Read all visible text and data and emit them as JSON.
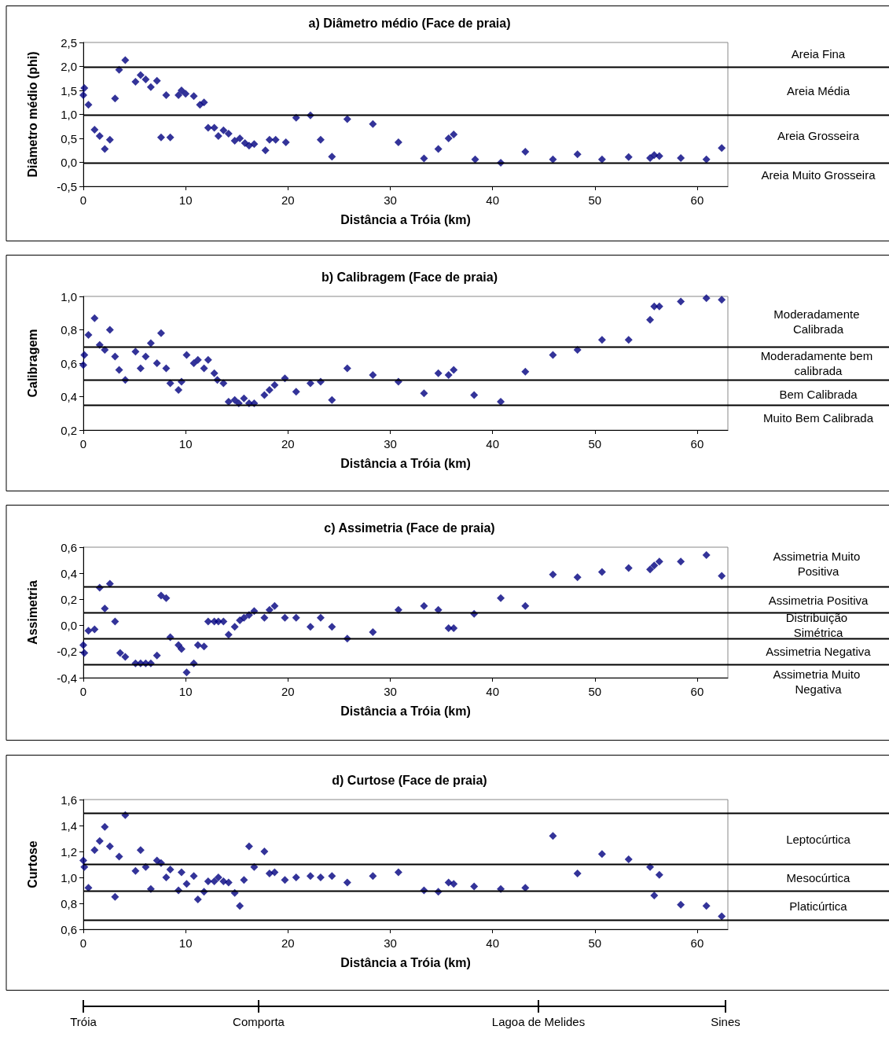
{
  "chart_data": [
    {
      "type": "scatter",
      "title": "a) Diâmetro médio (Face de praia)",
      "xlabel": "Distância a Tróia (km)",
      "ylabel": "Diâmetro médio (phi)",
      "x": [
        0,
        0.1,
        0.5,
        1.1,
        1.6,
        2.1,
        2.6,
        3.1,
        3.5,
        4.1,
        5.1,
        5.6,
        6.1,
        6.6,
        7.2,
        7.6,
        8.1,
        8.5,
        9.3,
        9.6,
        10.0,
        10.8,
        11.4,
        11.8,
        12.2,
        12.8,
        13.2,
        13.7,
        14.2,
        14.8,
        15.3,
        15.8,
        16.2,
        16.7,
        17.8,
        18.2,
        18.8,
        19.8,
        20.8,
        22.2,
        23.2,
        24.3,
        25.8,
        28.3,
        30.8,
        33.3,
        34.7,
        35.7,
        36.2,
        38.3,
        40.8,
        43.2,
        45.9,
        48.3,
        50.7,
        53.3,
        55.4,
        55.8,
        56.3,
        58.4,
        60.9,
        62.4
      ],
      "values": [
        1.4,
        1.55,
        1.2,
        0.68,
        0.55,
        0.28,
        0.47,
        1.33,
        1.93,
        2.13,
        1.68,
        1.82,
        1.73,
        1.57,
        1.7,
        0.52,
        1.4,
        0.52,
        1.4,
        1.5,
        1.43,
        1.38,
        1.2,
        1.25,
        0.72,
        0.72,
        0.55,
        0.67,
        0.6,
        0.45,
        0.5,
        0.4,
        0.35,
        0.38,
        0.25,
        0.47,
        0.47,
        0.42,
        0.93,
        0.98,
        0.47,
        0.12,
        0.9,
        0.8,
        0.42,
        0.08,
        0.28,
        0.5,
        0.58,
        0.06,
        -0.01,
        0.22,
        0.06,
        0.17,
        0.06,
        0.11,
        0.09,
        0.15,
        0.13,
        0.09,
        0.06,
        0.3
      ],
      "color": "#000080",
      "marker": "diamond",
      "grid": false,
      "xlim": [
        0,
        63
      ],
      "xticks": [
        0,
        10,
        20,
        30,
        40,
        50,
        60
      ],
      "ylim": [
        -0.5,
        2.5
      ],
      "yticks": [
        {
          "value": -0.5,
          "label": "-0,5"
        },
        {
          "value": 0,
          "label": "0,0"
        },
        {
          "value": 0.5,
          "label": "0,5"
        },
        {
          "value": 1,
          "label": "1,0"
        },
        {
          "value": 1.5,
          "label": "1,5"
        },
        {
          "value": 2,
          "label": "2,0"
        },
        {
          "value": 2.5,
          "label": "2,5"
        }
      ],
      "ref_lines": [
        {
          "axis": "y",
          "value": 2
        },
        {
          "axis": "y",
          "value": 1
        },
        {
          "axis": "y",
          "value": 0
        }
      ],
      "annotations": [
        "Areia Fina",
        "Areia Média",
        "Areia Grosseira",
        "Areia Muito Grosseira"
      ]
    },
    {
      "type": "scatter",
      "title": "b) Calibragem (Face de praia)",
      "xlabel": "Distância a Tróia (km)",
      "ylabel": "Calibragem",
      "x": [
        0,
        0.1,
        0.5,
        1.1,
        1.6,
        2.1,
        2.6,
        3.1,
        3.5,
        4.1,
        5.1,
        5.6,
        6.1,
        6.6,
        7.2,
        7.6,
        8.1,
        8.5,
        9.3,
        9.6,
        10.1,
        10.8,
        11.2,
        11.8,
        12.2,
        12.8,
        13.1,
        13.7,
        14.2,
        14.8,
        15.2,
        15.7,
        16.2,
        16.7,
        17.7,
        18.2,
        18.7,
        19.7,
        20.8,
        22.2,
        23.2,
        24.3,
        25.8,
        28.3,
        30.8,
        33.3,
        34.7,
        35.7,
        36.2,
        38.2,
        40.8,
        43.2,
        45.9,
        48.3,
        50.7,
        53.3,
        55.4,
        55.8,
        56.3,
        58.4,
        60.9,
        62.4
      ],
      "values": [
        0.59,
        0.65,
        0.77,
        0.87,
        0.71,
        0.68,
        0.8,
        0.64,
        0.56,
        0.5,
        0.67,
        0.57,
        0.64,
        0.72,
        0.6,
        0.78,
        0.57,
        0.48,
        0.44,
        0.49,
        0.65,
        0.6,
        0.62,
        0.57,
        0.62,
        0.54,
        0.5,
        0.48,
        0.37,
        0.38,
        0.36,
        0.39,
        0.36,
        0.36,
        0.41,
        0.44,
        0.47,
        0.51,
        0.43,
        0.48,
        0.49,
        0.38,
        0.57,
        0.53,
        0.49,
        0.42,
        0.54,
        0.53,
        0.56,
        0.41,
        0.37,
        0.55,
        0.65,
        0.68,
        0.74,
        0.74,
        0.86,
        0.94,
        0.94,
        0.97,
        0.99,
        0.98
      ],
      "color": "#000080",
      "marker": "diamond",
      "grid": false,
      "xlim": [
        0,
        63
      ],
      "xticks": [
        0,
        10,
        20,
        30,
        40,
        50,
        60
      ],
      "ylim": [
        0.2,
        1.0
      ],
      "yticks": [
        {
          "value": 0.2,
          "label": "0,2"
        },
        {
          "value": 0.4,
          "label": "0,4"
        },
        {
          "value": 0.6,
          "label": "0,6"
        },
        {
          "value": 0.8,
          "label": "0,8"
        },
        {
          "value": 1.0,
          "label": "1,0"
        }
      ],
      "ref_lines": [
        {
          "axis": "y",
          "value": 0.7
        },
        {
          "axis": "y",
          "value": 0.5
        },
        {
          "axis": "y",
          "value": 0.35
        }
      ],
      "annotations": [
        "Moderadamente Calibrada",
        "Moderadamente bem calibrada",
        "Bem Calibrada",
        "Muito Bem Calibrada"
      ]
    },
    {
      "type": "scatter",
      "title": "c) Assimetria (Face de praia)",
      "xlabel": "Distância a Tróia (km)",
      "ylabel": "Assimetria",
      "x": [
        0,
        0.1,
        0.5,
        1.1,
        1.6,
        2.1,
        2.6,
        3.1,
        3.6,
        4.1,
        5.1,
        5.6,
        6.1,
        6.6,
        7.2,
        7.6,
        8.1,
        8.5,
        9.3,
        9.6,
        10.1,
        10.8,
        11.2,
        11.8,
        12.2,
        12.8,
        13.2,
        13.7,
        14.2,
        14.8,
        15.3,
        15.7,
        16.2,
        16.7,
        17.7,
        18.2,
        18.7,
        19.7,
        20.8,
        22.2,
        23.2,
        24.3,
        25.8,
        28.3,
        30.8,
        33.3,
        34.7,
        35.7,
        36.2,
        38.2,
        40.8,
        43.2,
        45.9,
        48.3,
        50.7,
        53.3,
        55.4,
        55.8,
        56.3,
        58.4,
        60.9,
        62.4
      ],
      "values": [
        -0.15,
        -0.21,
        -0.04,
        -0.03,
        0.29,
        0.13,
        0.32,
        0.03,
        -0.21,
        -0.24,
        -0.29,
        -0.29,
        -0.29,
        -0.29,
        -0.23,
        0.23,
        0.21,
        -0.09,
        -0.15,
        -0.18,
        -0.36,
        -0.29,
        -0.15,
        -0.16,
        0.03,
        0.03,
        0.03,
        0.03,
        -0.07,
        -0.01,
        0.04,
        0.06,
        0.08,
        0.11,
        0.06,
        0.12,
        0.15,
        0.06,
        0.06,
        -0.01,
        0.06,
        -0.01,
        -0.1,
        -0.05,
        0.12,
        0.15,
        0.12,
        -0.02,
        -0.02,
        0.09,
        0.21,
        0.15,
        0.39,
        0.37,
        0.41,
        0.44,
        0.43,
        0.46,
        0.49,
        0.49,
        0.54,
        0.38
      ],
      "color": "#000080",
      "marker": "diamond",
      "grid": false,
      "xlim": [
        0,
        63
      ],
      "xticks": [
        0,
        10,
        20,
        30,
        40,
        50,
        60
      ],
      "ylim": [
        -0.4,
        0.6
      ],
      "yticks": [
        {
          "value": -0.4,
          "label": "-0,4"
        },
        {
          "value": -0.2,
          "label": "-0,2"
        },
        {
          "value": 0,
          "label": "0,0"
        },
        {
          "value": 0.2,
          "label": "0,2"
        },
        {
          "value": 0.4,
          "label": "0,4"
        },
        {
          "value": 0.6,
          "label": "0,6"
        }
      ],
      "ref_lines": [
        {
          "axis": "y",
          "value": 0.3
        },
        {
          "axis": "y",
          "value": 0.1
        },
        {
          "axis": "y",
          "value": -0.1
        },
        {
          "axis": "y",
          "value": -0.3
        }
      ],
      "annotations": [
        "Assimetria Muito Positiva",
        "Assimetria Positiva",
        "Distribuição Simétrica",
        "Assimetria Negativa",
        "Assimetria Muito Negativa"
      ]
    },
    {
      "type": "scatter",
      "title": "d) Curtose (Face de praia)",
      "xlabel": "Distância a Tróia (km)",
      "ylabel": "Curtose",
      "x": [
        0,
        0.1,
        0.5,
        1.1,
        1.6,
        2.1,
        2.6,
        3.1,
        3.5,
        4.1,
        5.1,
        5.6,
        6.1,
        6.6,
        7.2,
        7.6,
        8.1,
        8.5,
        9.3,
        9.6,
        10.1,
        10.8,
        11.2,
        11.8,
        12.2,
        12.8,
        13.2,
        13.7,
        14.2,
        14.8,
        15.3,
        15.7,
        16.2,
        16.7,
        17.7,
        18.2,
        18.7,
        19.7,
        20.8,
        22.2,
        23.2,
        24.3,
        25.8,
        28.3,
        30.8,
        33.3,
        34.7,
        35.7,
        36.2,
        38.2,
        40.8,
        43.2,
        45.9,
        48.3,
        50.7,
        53.3,
        55.4,
        55.8,
        56.3,
        58.4,
        60.9,
        62.4
      ],
      "values": [
        1.13,
        1.08,
        0.92,
        1.21,
        1.28,
        1.39,
        1.24,
        0.85,
        1.16,
        1.48,
        1.05,
        1.21,
        1.08,
        0.91,
        1.13,
        1.11,
        1.0,
        1.06,
        0.9,
        1.04,
        0.95,
        1.01,
        0.83,
        0.89,
        0.97,
        0.97,
        1.0,
        0.97,
        0.96,
        0.88,
        0.78,
        0.98,
        1.24,
        1.08,
        1.2,
        1.03,
        1.04,
        0.98,
        1.0,
        1.01,
        1.0,
        1.01,
        0.96,
        1.01,
        1.04,
        0.9,
        0.89,
        0.96,
        0.95,
        0.93,
        0.91,
        0.92,
        1.32,
        1.03,
        1.18,
        1.14,
        1.08,
        0.86,
        1.02,
        0.79,
        0.78,
        0.7
      ],
      "color": "#000080",
      "marker": "diamond",
      "grid": false,
      "xlim": [
        0,
        63
      ],
      "xticks": [
        0,
        10,
        20,
        30,
        40,
        50,
        60
      ],
      "ylim": [
        0.6,
        1.6
      ],
      "yticks": [
        {
          "value": 0.6,
          "label": "0,6"
        },
        {
          "value": 0.8,
          "label": "0,8"
        },
        {
          "value": 1.0,
          "label": "1,0"
        },
        {
          "value": 1.2,
          "label": "1,2"
        },
        {
          "value": 1.4,
          "label": "1,4"
        },
        {
          "value": 1.6,
          "label": "1,6"
        }
      ],
      "ref_lines": [
        {
          "axis": "y",
          "value": 1.5
        },
        {
          "axis": "y",
          "value": 1.1
        },
        {
          "axis": "y",
          "value": 0.9
        },
        {
          "axis": "y",
          "value": 0.67
        }
      ],
      "annotations": [
        "Leptocúrtica",
        "Mesocúrtica",
        "Platicúrtica",
        "Tróia",
        "Comporta",
        "Lagoa de Melides",
        "Sines"
      ]
    }
  ]
}
